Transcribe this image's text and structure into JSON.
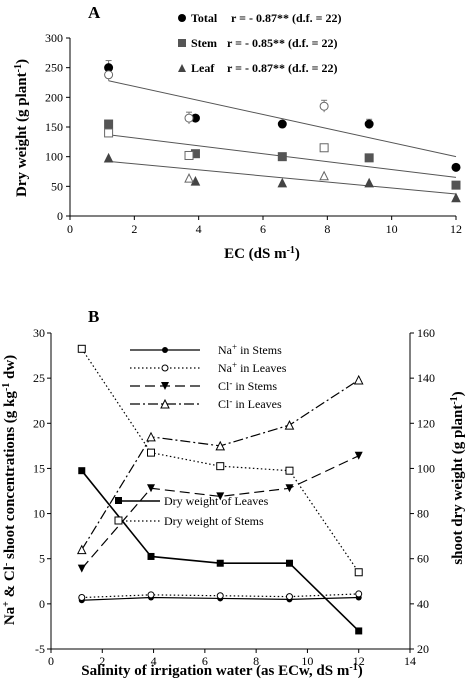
{
  "chart_data": [
    {
      "type": "scatter",
      "panel_label": "A",
      "xlabel": "EC (dS m",
      "xlabel_sup": "-1",
      "xlabel_close": ")",
      "ylabel": "Dry weight (g plant",
      "ylabel_sup": "-1",
      "ylabel_close": ")",
      "xlim": [
        0,
        12
      ],
      "ylim": [
        0,
        300
      ],
      "xticks": [
        "0",
        "2",
        "4",
        "6",
        "8",
        "10",
        "12"
      ],
      "yticks": [
        "0",
        "50",
        "100",
        "150",
        "200",
        "250",
        "300"
      ],
      "grid": false,
      "legend_position": "top-right",
      "series": [
        {
          "name": "Total",
          "stat": "r = - 0.87** (d.f. = 22)",
          "marker": "circle",
          "filled": [
            [
              1.2,
              250
            ],
            [
              3.9,
              165
            ],
            [
              6.6,
              155
            ],
            [
              9.3,
              155
            ],
            [
              12,
              82
            ]
          ],
          "open": [
            [
              1.2,
              238
            ],
            [
              3.7,
              165
            ],
            [
              7.9,
              185
            ]
          ],
          "error": [
            [
              1.2,
              250,
              12
            ],
            [
              1.2,
              238,
              10
            ],
            [
              3.7,
              165,
              10
            ],
            [
              7.9,
              185,
              10
            ],
            [
              9.3,
              155,
              8
            ]
          ],
          "fit": [
            [
              1.2,
              228
            ],
            [
              12,
              100
            ]
          ]
        },
        {
          "name": "Stem",
          "stat": "r = - 0.85** (d.f. = 22)",
          "marker": "square",
          "filled": [
            [
              1.2,
              155
            ],
            [
              3.9,
              105
            ],
            [
              6.6,
              100
            ],
            [
              9.3,
              98
            ],
            [
              12,
              52
            ]
          ],
          "open": [
            [
              1.2,
              140
            ],
            [
              3.7,
              102
            ],
            [
              7.9,
              115
            ]
          ],
          "error": [],
          "fit": [
            [
              1.2,
              137
            ],
            [
              12,
              65
            ]
          ]
        },
        {
          "name": "Leaf",
          "stat": "r = - 0.87** (d.f. = 22)",
          "marker": "triangle",
          "filled": [
            [
              1.2,
              97
            ],
            [
              3.9,
              58
            ],
            [
              6.6,
              55
            ],
            [
              9.3,
              55
            ],
            [
              12,
              30
            ]
          ],
          "open": [
            [
              3.7,
              63
            ],
            [
              7.9,
              67
            ]
          ],
          "error": [],
          "fit": [
            [
              1.2,
              92
            ],
            [
              12,
              37
            ]
          ]
        }
      ]
    },
    {
      "type": "line",
      "panel_label": "B",
      "xlabel": "Salinity of irrigation water (as ECw, dS m",
      "xlabel_sup": "-1",
      "xlabel_close": ")",
      "ylabel_left": "Na",
      "ylabel_left_sup1": "+",
      "ylabel_left_mid": " & Cl",
      "ylabel_left_sup2": "-",
      "ylabel_left_rest": " shoot concentrations (g kg",
      "ylabel_left_sup3": "-1",
      "ylabel_left_close": " dw)",
      "ylabel_right": "shoot dry weight (g plant",
      "ylabel_right_sup": "-1",
      "ylabel_right_close": ")",
      "xlim": [
        0,
        14
      ],
      "ylim_left": [
        -5,
        30
      ],
      "ylim_right": [
        20,
        160
      ],
      "xticks": [
        "0",
        "2",
        "4",
        "6",
        "8",
        "10",
        "12",
        "14"
      ],
      "yticks_left": [
        "-5",
        "0",
        "5",
        "10",
        "15",
        "20",
        "25",
        "30"
      ],
      "yticks_right": [
        "20",
        "40",
        "60",
        "80",
        "100",
        "120",
        "140",
        "160"
      ],
      "grid": false,
      "x": [
        1.2,
        3.9,
        6.6,
        9.3,
        12
      ],
      "series": [
        {
          "name": "Na",
          "name_sup": "+",
          "name_rest": " in Stems",
          "axis": "left",
          "marker": "filled-circle",
          "dash": "solid",
          "values": [
            0.4,
            0.7,
            0.6,
            0.5,
            0.7
          ]
        },
        {
          "name": "Na",
          "name_sup": "+",
          "name_rest": " in Leaves",
          "axis": "left",
          "marker": "open-circle",
          "dash": "dotted",
          "values": [
            0.7,
            1.0,
            0.9,
            0.8,
            1.1
          ]
        },
        {
          "name": "Cl",
          "name_sup": "-",
          "name_rest": " in Stems",
          "axis": "left",
          "marker": "filled-triangle-down",
          "dash": "dashed",
          "values": [
            3.9,
            12.8,
            11.9,
            12.8,
            16.4
          ]
        },
        {
          "name": "Cl",
          "name_sup": "-",
          "name_rest": " in Leaves",
          "axis": "left",
          "marker": "open-triangle",
          "dash": "dashdot",
          "values": [
            6.0,
            18.5,
            17.5,
            19.8,
            24.8
          ]
        },
        {
          "name": "Dry weight of Leaves",
          "axis": "right",
          "marker": "filled-square",
          "dash": "solid",
          "values": [
            99,
            61,
            58,
            58,
            28
          ]
        },
        {
          "name": "Dry weight of Stems",
          "axis": "right",
          "marker": "open-square",
          "dash": "dotted",
          "values": [
            153,
            107,
            101,
            99,
            54
          ]
        }
      ]
    }
  ]
}
